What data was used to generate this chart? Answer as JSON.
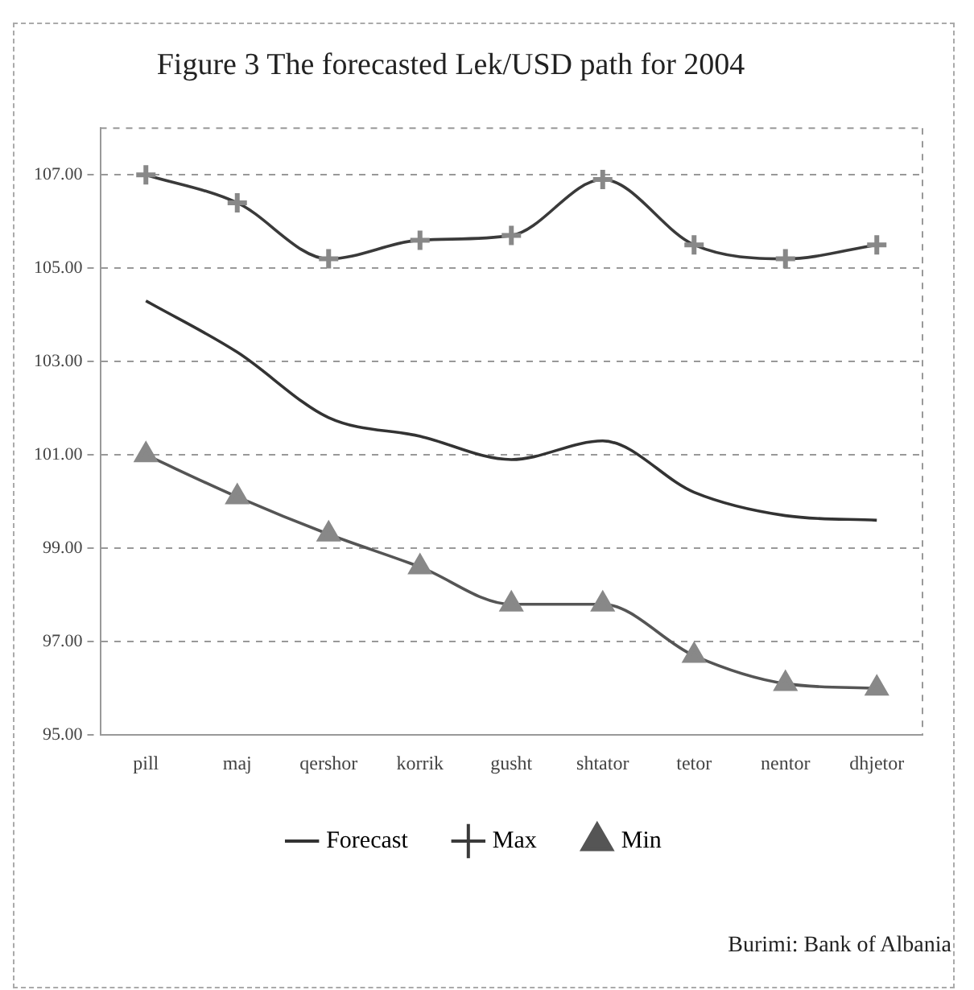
{
  "chart_data": {
    "type": "line",
    "title": "Figure 3 The forecasted Lek/USD path for 2004",
    "categories": [
      "pill",
      "maj",
      "qershor",
      "korrik",
      "gusht",
      "shtator",
      "tetor",
      "nentor",
      "dhjetor"
    ],
    "series": [
      {
        "name": "Forecast",
        "color": "#333333",
        "marker": "none",
        "values": [
          104.3,
          103.2,
          101.8,
          101.4,
          100.9,
          101.3,
          100.2,
          99.7,
          99.6
        ]
      },
      {
        "name": "Max",
        "color": "#3a3a3a",
        "marker": "cross",
        "values": [
          107.0,
          106.4,
          105.2,
          105.6,
          105.7,
          106.9,
          105.5,
          105.2,
          105.5
        ]
      },
      {
        "name": "Min",
        "color": "#555555",
        "marker": "triangle",
        "values": [
          101.0,
          100.1,
          99.3,
          98.6,
          97.8,
          97.8,
          96.7,
          96.1,
          96.0
        ]
      }
    ],
    "ylim": [
      95,
      108
    ],
    "yticks": [
      {
        "value": 95,
        "label": "95.00"
      },
      {
        "value": 97,
        "label": "97.00"
      },
      {
        "value": 99,
        "label": "99.00"
      },
      {
        "value": 101,
        "label": "101.00"
      },
      {
        "value": 103,
        "label": "103.00"
      },
      {
        "value": 105,
        "label": "105.00"
      },
      {
        "value": 107,
        "label": "107.00"
      }
    ],
    "grid": "y",
    "legend": "bottom",
    "line_style": "solid",
    "annotations": [
      "Burimi: Bank of Albania"
    ]
  }
}
